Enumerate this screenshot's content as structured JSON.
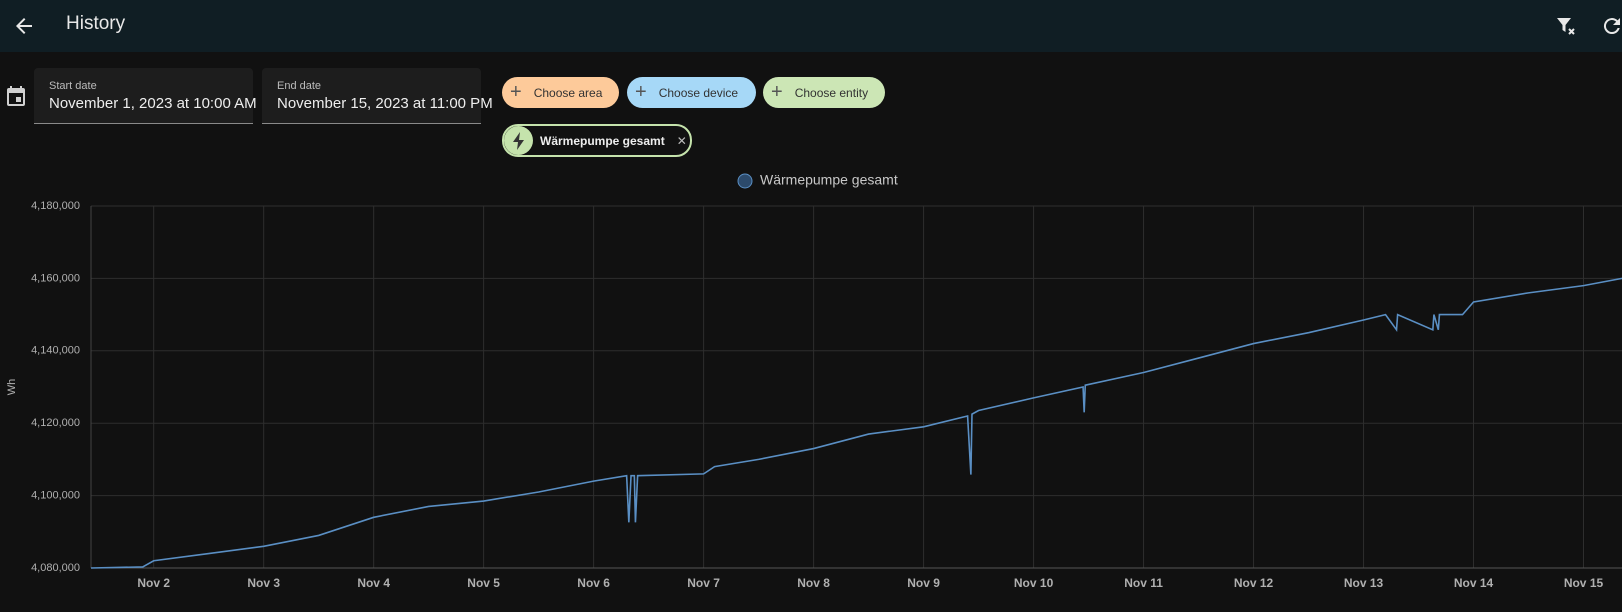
{
  "header": {
    "title": "History"
  },
  "date_range": {
    "start_label": "Start date",
    "start_value": "November 1, 2023 at 10:00 AM",
    "end_label": "End date",
    "end_value": "November 15, 2023 at 11:00 PM"
  },
  "target_picker": {
    "chips": [
      "Choose area",
      "Choose device",
      "Choose entity"
    ]
  },
  "selected": {
    "entities": [
      "Wärmepumpe gesamt"
    ]
  },
  "chart_data": {
    "type": "line",
    "y_label": "Wh",
    "x": [
      1.43,
      1.9,
      2.0,
      2.5,
      3.0,
      3.5,
      4.0,
      4.5,
      5.0,
      5.5,
      6.0,
      6.3,
      6.32,
      6.34,
      6.37,
      6.38,
      6.4,
      7.0,
      7.1,
      7.5,
      8.0,
      8.5,
      9.0,
      9.4,
      9.43,
      9.44,
      9.5,
      10.0,
      10.45,
      10.46,
      10.47,
      11.0,
      11.5,
      12.0,
      12.5,
      13.0,
      13.2,
      13.3,
      13.31,
      13.63,
      13.64,
      13.68,
      13.69,
      13.9,
      14.0,
      14.5,
      15.0,
      15.35
    ],
    "series": [
      {
        "name": "Wärmepumpe gesamt",
        "color": "#5a8fc4",
        "values": [
          4080000,
          4080300,
          4082000,
          4084000,
          4086000,
          4089000,
          4094000,
          4097000,
          4098500,
          4101000,
          4104000,
          4105500,
          4092600,
          4105500,
          4105500,
          4092600,
          4105500,
          4106000,
          4108000,
          4110000,
          4113000,
          4117000,
          4119000,
          4122000,
          4105800,
          4122500,
          4123500,
          4127000,
          4130000,
          4123000,
          4130500,
          4134000,
          4138000,
          4142000,
          4145000,
          4148500,
          4150000,
          4145800,
          4150000,
          4145800,
          4150000,
          4145800,
          4150000,
          4150000,
          4153500,
          4156000,
          4158000,
          4160000
        ]
      }
    ],
    "xlim": [
      1.43,
      15.35
    ],
    "ylim": [
      4080000,
      4180000
    ],
    "xticks": [
      {
        "value": 2,
        "label": "Nov 2"
      },
      {
        "value": 3,
        "label": "Nov 3"
      },
      {
        "value": 4,
        "label": "Nov 4"
      },
      {
        "value": 5,
        "label": "Nov 5"
      },
      {
        "value": 6,
        "label": "Nov 6"
      },
      {
        "value": 7,
        "label": "Nov 7"
      },
      {
        "value": 8,
        "label": "Nov 8"
      },
      {
        "value": 9,
        "label": "Nov 9"
      },
      {
        "value": 10,
        "label": "Nov 10"
      },
      {
        "value": 11,
        "label": "Nov 11"
      },
      {
        "value": 12,
        "label": "Nov 12"
      },
      {
        "value": 13,
        "label": "Nov 13"
      },
      {
        "value": 14,
        "label": "Nov 14"
      },
      {
        "value": 15,
        "label": "Nov 15"
      }
    ],
    "yticks": [
      {
        "value": 4080000,
        "label": "4,080,000"
      },
      {
        "value": 4100000,
        "label": "4,100,000"
      },
      {
        "value": 4120000,
        "label": "4,120,000"
      },
      {
        "value": 4140000,
        "label": "4,140,000"
      },
      {
        "value": 4160000,
        "label": "4,160,000"
      },
      {
        "value": 4180000,
        "label": "4,180,000"
      }
    ],
    "grid": true,
    "legend": "top"
  }
}
